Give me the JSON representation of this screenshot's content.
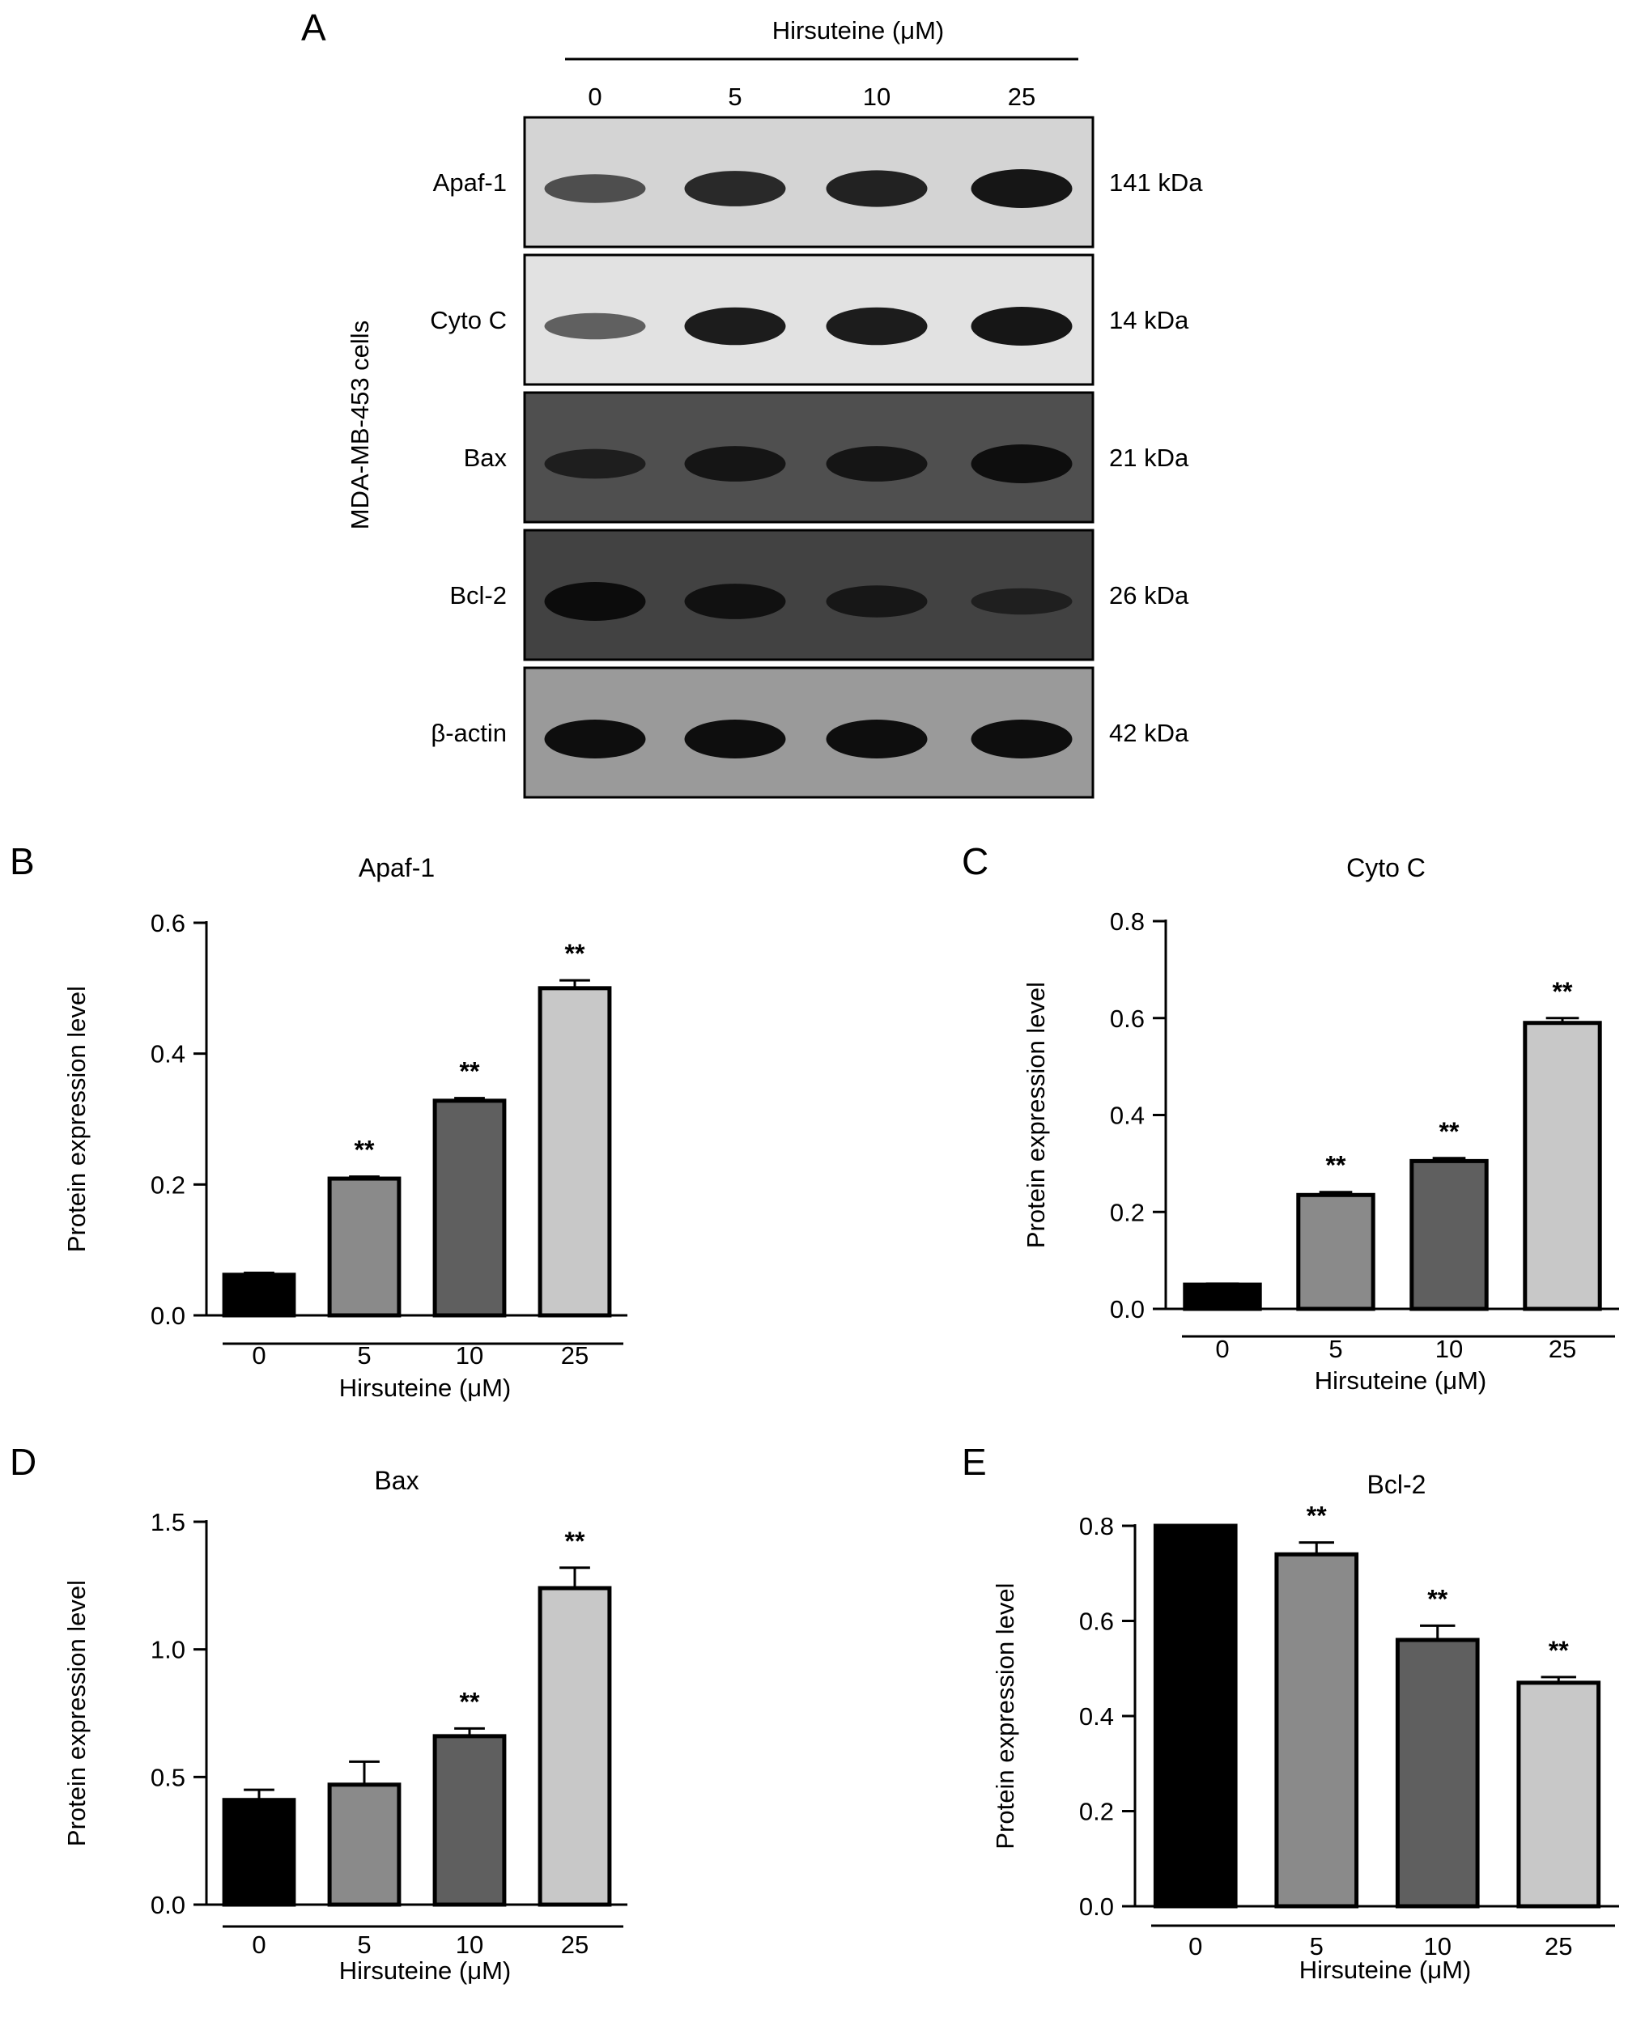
{
  "panel_a": {
    "letter": "A",
    "treatment_label": "Hirsuteine (μM)",
    "doses": [
      "0",
      "5",
      "10",
      "25"
    ],
    "cell_line": "MDA-MB-453 cells",
    "blots": [
      {
        "protein": "Apaf-1",
        "size": "141 kDa",
        "background": "#d4d4d4",
        "band_color": "#161616",
        "band_intensity": [
          0.55,
          0.85,
          0.9,
          1.0
        ]
      },
      {
        "protein": "Cyto C",
        "size": "14 kDa",
        "background": "#e2e2e2",
        "band_color": "#161616",
        "band_intensity": [
          0.45,
          0.95,
          0.95,
          1.0
        ]
      },
      {
        "protein": "Bax",
        "size": "21 kDa",
        "background": "#4f4f4f",
        "band_color": "#0e0e0e",
        "band_intensity": [
          0.6,
          0.85,
          0.85,
          1.0
        ]
      },
      {
        "protein": "Bcl-2",
        "size": "26 kDa",
        "background": "#424242",
        "band_color": "#0c0c0c",
        "band_intensity": [
          1.0,
          0.85,
          0.7,
          0.45
        ]
      },
      {
        "protein": "β-actin",
        "size": "42 kDa",
        "background": "#9a9a9a",
        "band_color": "#0e0e0e",
        "band_intensity": [
          1.0,
          1.0,
          1.0,
          1.0
        ]
      }
    ]
  },
  "chart_data": [
    {
      "panel": "B",
      "type": "bar",
      "title": "Apaf-1",
      "xlabel": "Hirsuteine (μM)",
      "ylabel": "Protein expression level",
      "categories": [
        "0",
        "5",
        "10",
        "25"
      ],
      "values": [
        0.062,
        0.209,
        0.328,
        0.5
      ],
      "errors": [
        0.003,
        0.003,
        0.004,
        0.012
      ],
      "significance": [
        "",
        "**",
        "**",
        "**"
      ],
      "ylim": [
        0,
        0.6
      ],
      "yticks": [
        "0.0",
        "0.2",
        "0.4",
        "0.6"
      ],
      "bar_colors": [
        "#000000",
        "#8a8a8a",
        "#5f5f5f",
        "#c8c8c8"
      ]
    },
    {
      "panel": "C",
      "type": "bar",
      "title": "Cyto C",
      "xlabel": "Hirsuteine (μM)",
      "ylabel": "Protein expression level",
      "categories": [
        "0",
        "5",
        "10",
        "25"
      ],
      "values": [
        0.05,
        0.235,
        0.305,
        0.59
      ],
      "errors": [
        0.002,
        0.006,
        0.006,
        0.01
      ],
      "significance": [
        "",
        "**",
        "**",
        "**"
      ],
      "ylim": [
        0,
        0.8
      ],
      "yticks": [
        "0.0",
        "0.2",
        "0.4",
        "0.6",
        "0.8"
      ],
      "bar_colors": [
        "#000000",
        "#8a8a8a",
        "#5f5f5f",
        "#c8c8c8"
      ]
    },
    {
      "panel": "D",
      "type": "bar",
      "title": "Bax",
      "xlabel": "Hirsuteine (μM)",
      "ylabel": "Protein expression level",
      "categories": [
        "0",
        "5",
        "10",
        "25"
      ],
      "values": [
        0.41,
        0.47,
        0.66,
        1.24
      ],
      "errors": [
        0.04,
        0.09,
        0.03,
        0.08
      ],
      "significance": [
        "",
        "",
        "**",
        "**"
      ],
      "ylim": [
        0,
        1.5
      ],
      "yticks": [
        "0.0",
        "0.5",
        "1.0",
        "1.5"
      ],
      "bar_colors": [
        "#000000",
        "#8a8a8a",
        "#5f5f5f",
        "#c8c8c8"
      ]
    },
    {
      "panel": "E",
      "type": "bar",
      "title": "Bcl-2",
      "xlabel": "Hirsuteine (μM)",
      "ylabel": "Protein expression level",
      "categories": [
        "0",
        "5",
        "10",
        "25"
      ],
      "values": [
        0.8,
        0.74,
        0.56,
        0.47
      ],
      "errors": [
        0.0,
        0.025,
        0.03,
        0.012
      ],
      "significance": [
        "",
        "**",
        "**",
        "**"
      ],
      "ylim": [
        0,
        0.8
      ],
      "yticks": [
        "0.0",
        "0.2",
        "0.4",
        "0.6",
        "0.8"
      ],
      "bar_colors": [
        "#000000",
        "#8a8a8a",
        "#5f5f5f",
        "#c8c8c8"
      ]
    }
  ]
}
